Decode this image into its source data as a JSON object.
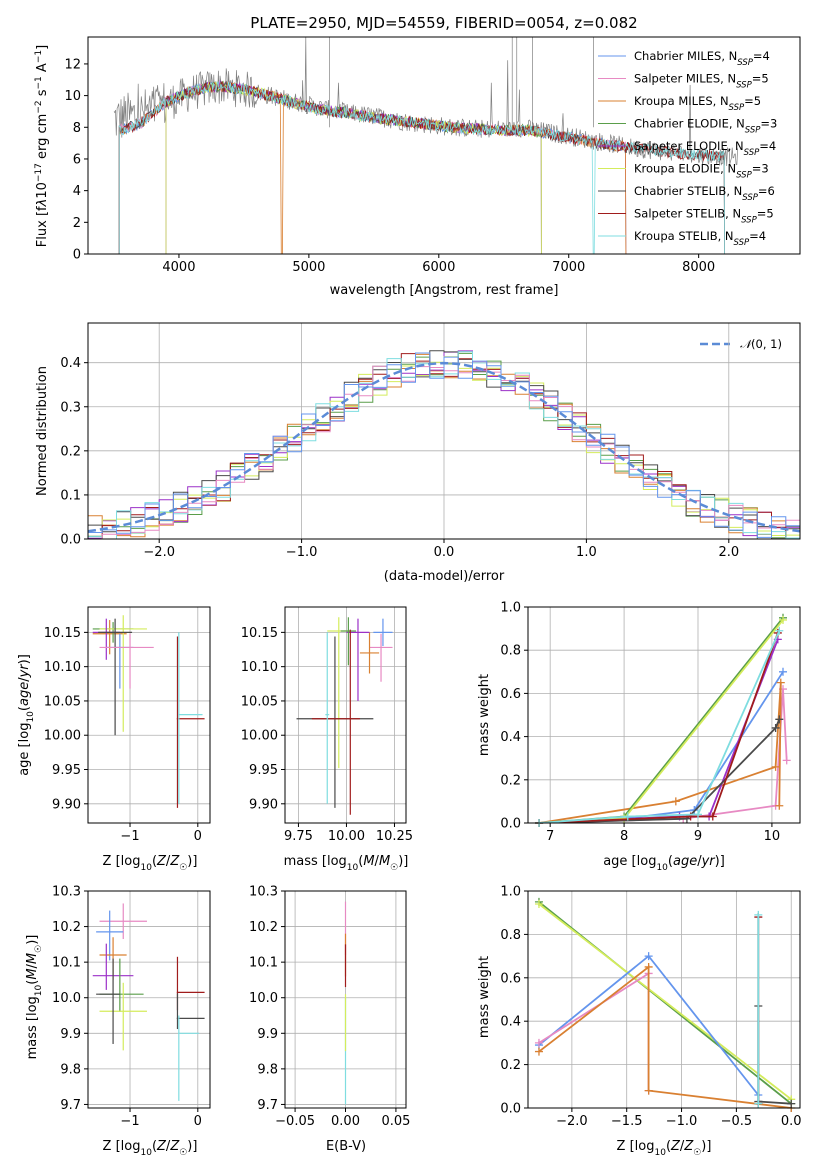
{
  "chart_data": [
    {
      "id": "spectrum",
      "type": "line",
      "title": "PLATE=2950, MJD=54559, FIBERID=0054, z=0.082",
      "xlabel": "wavelength [Angstrom, rest frame]",
      "ylabel": "Flux [f_λ 10^-17 erg cm^-2 s^-1 A^-1]",
      "xlim": [
        3300,
        8780
      ],
      "ylim": [
        0,
        13.7
      ],
      "xticks": [
        4000,
        5000,
        6000,
        7000,
        8000
      ],
      "yticks": [
        0,
        2,
        4,
        6,
        8,
        10,
        12
      ],
      "grid": false,
      "legend_position": "top-right",
      "observed": {
        "color": "#808080",
        "x": [
          3500,
          3700,
          3900,
          4100,
          4300,
          4500,
          4700,
          4900,
          5100,
          5300,
          5500,
          5700,
          5900,
          6100,
          6300,
          6500,
          6700,
          6900,
          7100,
          7300,
          7500,
          7700,
          7900,
          8100,
          8300
        ],
        "y": [
          8.5,
          8.8,
          9.5,
          10.2,
          10.6,
          10.4,
          10.0,
          9.6,
          9.2,
          8.9,
          8.7,
          8.4,
          8.2,
          8.0,
          7.9,
          7.9,
          7.9,
          7.6,
          7.3,
          7.0,
          6.7,
          6.5,
          6.3,
          6.2,
          6.1
        ]
      },
      "model_x": [
        3540,
        3700,
        3900,
        4100,
        4300,
        4500,
        4700,
        4900,
        5100,
        5300,
        5500,
        5700,
        5900,
        6100,
        6300,
        6500,
        6700,
        6900,
        7100,
        7300,
        7500,
        7700,
        7900,
        8100,
        8200
      ],
      "model_y": [
        7.8,
        8.2,
        9.6,
        10.3,
        10.6,
        10.4,
        10.0,
        9.5,
        9.1,
        8.9,
        8.6,
        8.4,
        8.2,
        8.0,
        7.9,
        7.8,
        7.8,
        7.5,
        7.2,
        6.9,
        6.7,
        6.5,
        6.3,
        6.2,
        6.2
      ],
      "series": [
        {
          "name": "Chabrier MILES, N_SSP=4",
          "name_main": "Chabrier MILES, N",
          "name_sub": "SSP",
          "name_tail": "=4",
          "color": "#6495ed",
          "range": [
            3540,
            7440
          ],
          "dip": null
        },
        {
          "name": "Salpeter MILES, N_SSP=5",
          "name_main": "Salpeter MILES, N",
          "name_sub": "SSP",
          "name_tail": "=5",
          "color": "#e78ac3",
          "range": [
            3540,
            7440
          ],
          "dip": null
        },
        {
          "name": "Kroupa MILES, N_SSP=5",
          "name_main": "Kroupa MILES, N",
          "name_sub": "SSP",
          "name_tail": "=5",
          "color": "#d98032",
          "range": [
            3540,
            7440
          ],
          "dip": 4790
        },
        {
          "name": "Chabrier ELODIE, N_SSP=3",
          "name_main": "Chabrier ELODIE, N",
          "name_sub": "SSP",
          "name_tail": "=3",
          "color": "#5a9e4a",
          "range": [
            3900,
            6790
          ],
          "dip": null
        },
        {
          "name": "Salpeter ELODIE, N_SSP=4",
          "name_main": "Salpeter ELODIE, N",
          "name_sub": "SSP",
          "name_tail": "=4",
          "color": "#9b30c8",
          "range": [
            3900,
            6790
          ],
          "dip": null
        },
        {
          "name": "Kroupa ELODIE, N_SSP=3",
          "name_main": "Kroupa ELODIE, N",
          "name_sub": "SSP",
          "name_tail": "=3",
          "color": "#d4ec5c",
          "range": [
            3900,
            6790
          ],
          "dip": null
        },
        {
          "name": "Chabrier STELIB, N_SSP=6",
          "name_main": "Chabrier STELIB, N",
          "name_sub": "SSP",
          "name_tail": "=6",
          "color": "#4a4a4a",
          "range": [
            3540,
            8200
          ],
          "dip": null
        },
        {
          "name": "Salpeter STELIB, N_SSP=5",
          "name_main": "Salpeter STELIB, N",
          "name_sub": "SSP",
          "name_tail": "=5",
          "color": "#a01c1c",
          "range": [
            3540,
            8200
          ],
          "dip": null
        },
        {
          "name": "Kroupa STELIB, N_SSP=4",
          "name_main": "Kroupa STELIB, N",
          "name_sub": "SSP",
          "name_tail": "=4",
          "color": "#7fdde0",
          "range": [
            3540,
            8200
          ],
          "dip": 7190
        }
      ]
    },
    {
      "id": "residuals",
      "type": "line",
      "xlabel": "(data-model)/error",
      "ylabel": "Normed distribution",
      "xlim": [
        -2.5,
        2.5
      ],
      "ylim": [
        0,
        0.49
      ],
      "xticks": [
        -2,
        -1,
        0,
        1,
        2
      ],
      "yticks": [
        0.0,
        0.1,
        0.2,
        0.3,
        0.4
      ],
      "grid": true,
      "legend_position": "top-right",
      "reference": {
        "name": "N(0,1)",
        "color": "#5b8bd6",
        "mean": 0,
        "sigma": 1
      },
      "hist_bin_width": 0.1,
      "hist_series_colors": [
        "#5a9e4a",
        "#d98032",
        "#9b30c8",
        "#d4ec5c",
        "#4a4a4a",
        "#a01c1c",
        "#7fdde0",
        "#e78ac3",
        "#6495ed"
      ]
    },
    {
      "id": "age-vs-z",
      "type": "scatter",
      "xlabel": "Z [log10(Z/Z☉)]",
      "ylabel": "age  [log10(age/yr)]",
      "xlim": [
        -1.62,
        0.18
      ],
      "ylim": [
        9.872,
        10.187
      ],
      "xticks": [
        -1,
        0
      ],
      "yticks": [
        9.9,
        9.95,
        10.0,
        10.05,
        10.1,
        10.15
      ],
      "grid": true,
      "points": [
        {
          "x": -1.3,
          "y": 10.148,
          "x_err": [
            0.25,
            0.25
          ],
          "y_err": [
            0.03,
            0.02
          ],
          "color": "#d98032"
        },
        {
          "x": -1.15,
          "y": 10.128,
          "x_err": [
            0.2,
            0.2
          ],
          "y_err": [
            0.06,
            0.02
          ],
          "color": "#6495ed"
        },
        {
          "x": -1.25,
          "y": 10.155,
          "x_err": [
            0.3,
            0.3
          ],
          "y_err": [
            0.02,
            0.01
          ],
          "color": "#5a9e4a"
        },
        {
          "x": -1.1,
          "y": 10.155,
          "x_err": [
            0.35,
            0.35
          ],
          "y_err": [
            0.15,
            0.02
          ],
          "color": "#d4ec5c"
        },
        {
          "x": -1.35,
          "y": 10.15,
          "x_err": [
            0.2,
            0.2
          ],
          "y_err": [
            0.04,
            0.02
          ],
          "color": "#9b30c8"
        },
        {
          "x": -1.22,
          "y": 10.15,
          "x_err": [
            0.25,
            0.25
          ],
          "y_err": [
            0.15,
            0.02
          ],
          "color": "#4a4a4a"
        },
        {
          "x": -1.0,
          "y": 10.128,
          "x_err": [
            0.45,
            0.35
          ],
          "y_err": [
            0.06,
            0.02
          ],
          "color": "#e78ac3"
        },
        {
          "x": -0.3,
          "y": 10.024,
          "x_err": [
            0.01,
            0.4
          ],
          "y_err": [
            0.13,
            0.12
          ],
          "color": "#a01c1c"
        },
        {
          "x": -0.28,
          "y": 10.03,
          "x_err": [
            0.01,
            0.35
          ],
          "y_err": [
            0.13,
            0.12
          ],
          "color": "#7fdde0"
        }
      ]
    },
    {
      "id": "age-vs-mass",
      "type": "scatter",
      "xlabel": "mass [log10(M/M☉)]",
      "ylabel": "",
      "xlim": [
        9.68,
        10.31
      ],
      "ylim": [
        9.872,
        10.187
      ],
      "xticks": [
        9.75,
        10.0,
        10.25
      ],
      "yticks": [
        9.9,
        9.95,
        10.0,
        10.05,
        10.1,
        10.15
      ],
      "grid": true,
      "points": [
        {
          "x": 10.18,
          "y": 10.128,
          "x_err": [
            0.06,
            0.06
          ],
          "y_err": [
            0.05,
            0.02
          ],
          "color": "#e78ac3"
        },
        {
          "x": 10.12,
          "y": 10.12,
          "x_err": [
            0.05,
            0.05
          ],
          "y_err": [
            0.03,
            0.03
          ],
          "color": "#d98032"
        },
        {
          "x": 10.19,
          "y": 10.15,
          "x_err": [
            0.05,
            0.05
          ],
          "y_err": [
            0.02,
            0.02
          ],
          "color": "#6495ed"
        },
        {
          "x": 9.96,
          "y": 10.152,
          "x_err": [
            0.06,
            0.06
          ],
          "y_err": [
            0.2,
            0.02
          ],
          "color": "#d4ec5c"
        },
        {
          "x": 10.06,
          "y": 10.15,
          "x_err": [
            0.06,
            0.06
          ],
          "y_err": [
            0.1,
            0.02
          ],
          "color": "#9b30c8"
        },
        {
          "x": 10.01,
          "y": 10.152,
          "x_err": [
            0.04,
            0.04
          ],
          "y_err": [
            0.05,
            0.02
          ],
          "color": "#5a9e4a"
        },
        {
          "x": 9.94,
          "y": 10.024,
          "x_err": [
            0.2,
            0.2
          ],
          "y_err": [
            0.13,
            0.12
          ],
          "color": "#4a4a4a"
        },
        {
          "x": 10.02,
          "y": 10.024,
          "x_err": [
            0.2,
            0.05
          ],
          "y_err": [
            0.14,
            0.13
          ],
          "color": "#a01c1c"
        },
        {
          "x": 9.9,
          "y": 10.03,
          "x_err": [
            0.01,
            0.01
          ],
          "y_err": [
            0.13,
            0.12
          ],
          "color": "#7fdde0"
        }
      ]
    },
    {
      "id": "weight-vs-age",
      "type": "line",
      "xlabel": "age  [log10(age/yr)]",
      "ylabel": "mass weight",
      "xlim": [
        6.7,
        10.38
      ],
      "ylim": [
        0,
        1
      ],
      "xticks": [
        7,
        8,
        9,
        10
      ],
      "yticks": [
        0.0,
        0.2,
        0.4,
        0.6,
        0.8,
        1.0
      ],
      "grid": true,
      "series": [
        {
          "color": "#6495ed",
          "x": [
            6.85,
            8.0,
            8.95,
            10.15
          ],
          "y": [
            0.0,
            0.02,
            0.06,
            0.7
          ]
        },
        {
          "color": "#e78ac3",
          "x": [
            6.85,
            8.8,
            10.05,
            10.15,
            10.2
          ],
          "y": [
            0.0,
            0.02,
            0.08,
            0.62,
            0.29
          ]
        },
        {
          "color": "#d98032",
          "x": [
            6.85,
            8.7,
            10.05,
            10.12,
            10.1
          ],
          "y": [
            0.0,
            0.1,
            0.26,
            0.65,
            0.08
          ]
        },
        {
          "color": "#5a9e4a",
          "x": [
            6.85,
            8.0,
            10.15
          ],
          "y": [
            0.0,
            0.03,
            0.95
          ]
        },
        {
          "color": "#9b30c8",
          "x": [
            6.85,
            8.75,
            9.15,
            10.08
          ],
          "y": [
            0.0,
            0.03,
            0.03,
            0.85
          ]
        },
        {
          "color": "#d4ec5c",
          "x": [
            6.85,
            8.0,
            10.15
          ],
          "y": [
            0.0,
            0.02,
            0.94
          ]
        },
        {
          "color": "#4a4a4a",
          "x": [
            6.85,
            8.85,
            10.05,
            10.1
          ],
          "y": [
            0.0,
            0.02,
            0.44,
            0.48
          ]
        },
        {
          "color": "#a01c1c",
          "x": [
            6.85,
            8.9,
            9.2,
            10.08
          ],
          "y": [
            0.0,
            0.03,
            0.03,
            0.88
          ]
        },
        {
          "color": "#7fdde0",
          "x": [
            6.85,
            8.05,
            9.0,
            10.1
          ],
          "y": [
            0.0,
            0.03,
            0.04,
            0.89
          ]
        }
      ]
    },
    {
      "id": "mass-vs-z",
      "type": "scatter",
      "xlabel": "Z [log10(Z/Z☉)]",
      "ylabel": "mass [log10(M/M☉)]",
      "xlim": [
        -1.62,
        0.18
      ],
      "ylim": [
        9.69,
        10.3
      ],
      "xticks": [
        -1,
        0
      ],
      "yticks": [
        9.7,
        9.8,
        9.9,
        10.0,
        10.1,
        10.2,
        10.3
      ],
      "grid": true,
      "points": [
        {
          "x": -1.1,
          "y": 10.215,
          "x_err": [
            0.35,
            0.35
          ],
          "y_err": [
            0.05,
            0.05
          ],
          "color": "#e78ac3"
        },
        {
          "x": -1.3,
          "y": 10.185,
          "x_err": [
            0.2,
            0.2
          ],
          "y_err": [
            0.08,
            0.06
          ],
          "color": "#6495ed"
        },
        {
          "x": -1.25,
          "y": 10.12,
          "x_err": [
            0.2,
            0.2
          ],
          "y_err": [
            0.07,
            0.05
          ],
          "color": "#d98032"
        },
        {
          "x": -1.35,
          "y": 10.062,
          "x_err": [
            0.2,
            0.4
          ],
          "y_err": [
            0.04,
            0.09
          ],
          "color": "#9b30c8"
        },
        {
          "x": -1.15,
          "y": 10.01,
          "x_err": [
            0.3,
            0.35
          ],
          "y_err": [
            0.05,
            0.1
          ],
          "color": "#5a9e4a"
        },
        {
          "x": -1.1,
          "y": 9.962,
          "x_err": [
            0.35,
            0.35
          ],
          "y_err": [
            0.11,
            0.08
          ],
          "color": "#d4ec5c"
        },
        {
          "x": -1.25,
          "y": 10.01,
          "x_err": [
            0.25,
            0.1
          ],
          "y_err": [
            0.14,
            0.1
          ],
          "color": "#4a4a4a"
        },
        {
          "x": -0.3,
          "y": 10.015,
          "x_err": [
            0.01,
            0.4
          ],
          "y_err": [
            0.05,
            0.1
          ],
          "color": "#a01c1c"
        },
        {
          "x": -0.3,
          "y": 9.942,
          "x_err": [
            0.01,
            0.4
          ],
          "y_err": [
            0.03,
            0.07
          ],
          "color": "#4a4a4a"
        },
        {
          "x": -0.28,
          "y": 9.9,
          "x_err": [
            0.01,
            0.3
          ],
          "y_err": [
            0.19,
            0.05
          ],
          "color": "#7fdde0"
        }
      ]
    },
    {
      "id": "mass-vs-ebv",
      "type": "scatter",
      "xlabel": "E(B-V)",
      "ylabel": "",
      "xlim": [
        -0.06,
        0.06
      ],
      "ylim": [
        9.69,
        10.3
      ],
      "xticks": [
        -0.05,
        0.0,
        0.05
      ],
      "yticks": [
        9.7,
        9.8,
        9.9,
        10.0,
        10.1,
        10.2,
        10.3
      ],
      "grid": true,
      "points": [
        {
          "x": 0.0,
          "y": 10.2,
          "x_err": [
            0,
            0
          ],
          "y_err": [
            0.08,
            0.07
          ],
          "color": "#e78ac3"
        },
        {
          "x": 0.0,
          "y": 10.12,
          "x_err": [
            0,
            0
          ],
          "y_err": [
            0.06,
            0.06
          ],
          "color": "#d98032"
        },
        {
          "x": 0.0,
          "y": 10.1,
          "x_err": [
            0,
            0
          ],
          "y_err": [
            0.07,
            0.05
          ],
          "color": "#a01c1c"
        },
        {
          "x": 0.0,
          "y": 9.9,
          "x_err": [
            0,
            0
          ],
          "y_err": [
            0.2,
            0.1
          ],
          "color": "#7fdde0"
        },
        {
          "x": 0.0,
          "y": 9.95,
          "x_err": [
            0,
            0
          ],
          "y_err": [
            0.1,
            0.06
          ],
          "color": "#d4ec5c"
        }
      ]
    },
    {
      "id": "weight-vs-z",
      "type": "line",
      "xlabel": "Z [log10(Z/Z☉)]",
      "ylabel": "mass weight",
      "xlim": [
        -2.4,
        0.08
      ],
      "ylim": [
        0,
        1
      ],
      "xticks": [
        -2.0,
        -1.5,
        -1.0,
        -0.5,
        0.0
      ],
      "yticks": [
        0.0,
        0.2,
        0.4,
        0.6,
        0.8,
        1.0
      ],
      "grid": true,
      "series": [
        {
          "color": "#5a9e4a",
          "x": [
            -2.3,
            0.0
          ],
          "y": [
            0.95,
            0.02
          ]
        },
        {
          "color": "#d4ec5c",
          "x": [
            -2.3,
            0.0
          ],
          "y": [
            0.94,
            0.04
          ]
        },
        {
          "color": "#6495ed",
          "x": [
            -2.3,
            -1.3,
            -0.3,
            -0.3
          ],
          "y": [
            0.29,
            0.7,
            0.06,
            0.02
          ]
        },
        {
          "color": "#e78ac3",
          "x": [
            -2.3,
            -1.3,
            -1.3
          ],
          "y": [
            0.3,
            0.62,
            0.08
          ]
        },
        {
          "color": "#d98032",
          "x": [
            -2.3,
            -1.3,
            -1.3,
            0.0
          ],
          "y": [
            0.26,
            0.65,
            0.08,
            0.0
          ]
        },
        {
          "color": "#4a4a4a",
          "x": [
            -0.3,
            -0.3,
            0.0
          ],
          "y": [
            0.47,
            0.03,
            0.02
          ]
        },
        {
          "color": "#a01c1c",
          "x": [
            -0.3,
            -0.3
          ],
          "y": [
            0.88,
            0.02
          ]
        },
        {
          "color": "#7fdde0",
          "x": [
            -0.3,
            -0.3
          ],
          "y": [
            0.89,
            0.02
          ]
        }
      ]
    }
  ]
}
